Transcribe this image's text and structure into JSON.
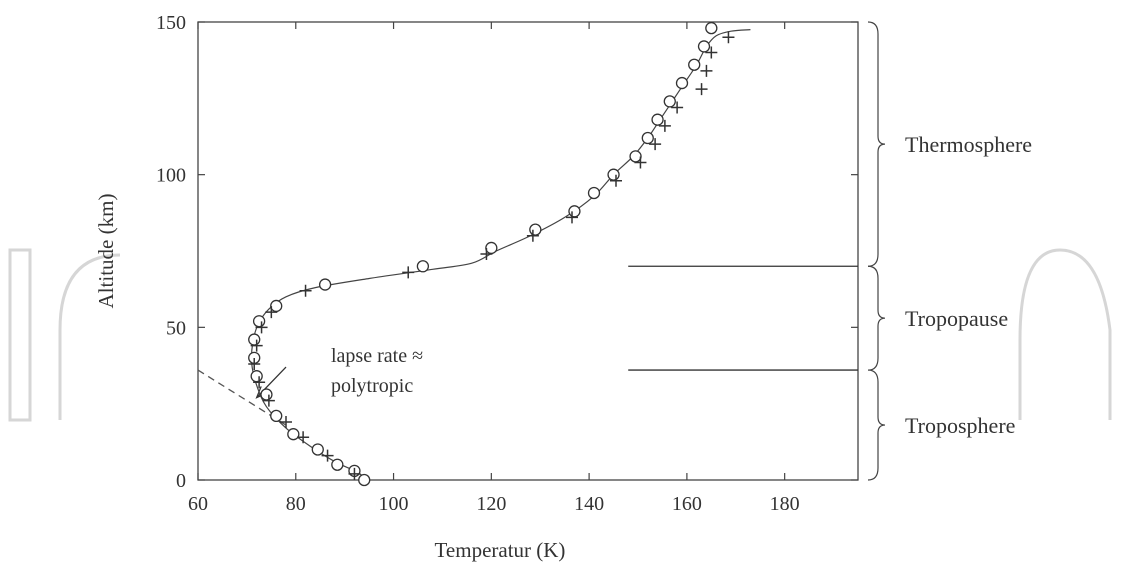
{
  "chart_data": {
    "type": "scatter",
    "title": "",
    "xlabel": "Temperatur (K)",
    "ylabel": "Altitude (km)",
    "xlim": [
      60,
      195
    ],
    "ylim": [
      0,
      150
    ],
    "x_ticks": [
      60,
      80,
      100,
      120,
      140,
      160,
      180
    ],
    "y_ticks": [
      0,
      50,
      100,
      150
    ],
    "grid": false,
    "legend": "none",
    "series": [
      {
        "marker": "circle",
        "points": [
          [
            94,
            0
          ],
          [
            92,
            3
          ],
          [
            88.5,
            5
          ],
          [
            84.5,
            10
          ],
          [
            79.5,
            15
          ],
          [
            76,
            21
          ],
          [
            74,
            28
          ],
          [
            72,
            34
          ],
          [
            71.5,
            40
          ],
          [
            71.5,
            46
          ],
          [
            72.5,
            52
          ],
          [
            76,
            57
          ],
          [
            86,
            64
          ],
          [
            106,
            70
          ],
          [
            120,
            76
          ],
          [
            129,
            82
          ],
          [
            137,
            88
          ],
          [
            141,
            94
          ],
          [
            145,
            100
          ],
          [
            149.5,
            106
          ],
          [
            152,
            112
          ],
          [
            154,
            118
          ],
          [
            156.5,
            124
          ],
          [
            159,
            130
          ],
          [
            161.5,
            136
          ],
          [
            163.5,
            142
          ],
          [
            165,
            148
          ]
        ]
      },
      {
        "marker": "plus",
        "points": [
          [
            92,
            2
          ],
          [
            86.5,
            8
          ],
          [
            81.5,
            14
          ],
          [
            78,
            19
          ],
          [
            74.5,
            26
          ],
          [
            72.5,
            32
          ],
          [
            71.5,
            38
          ],
          [
            72,
            44
          ],
          [
            73,
            50
          ],
          [
            75,
            55
          ],
          [
            82,
            62
          ],
          [
            103,
            68
          ],
          [
            119,
            74
          ],
          [
            128.5,
            80
          ],
          [
            136.5,
            86
          ],
          [
            145.5,
            98
          ],
          [
            150.5,
            104
          ],
          [
            153.5,
            110
          ],
          [
            155.5,
            116
          ],
          [
            158,
            122
          ],
          [
            163,
            128
          ],
          [
            164,
            134
          ],
          [
            165,
            140
          ],
          [
            168.5,
            145
          ]
        ]
      }
    ],
    "fit_curve": [
      [
        95,
        0
      ],
      [
        92,
        3
      ],
      [
        88,
        6
      ],
      [
        83,
        11
      ],
      [
        78,
        17
      ],
      [
        74,
        24
      ],
      [
        72,
        31
      ],
      [
        71,
        38
      ],
      [
        71.2,
        45
      ],
      [
        72.3,
        51
      ],
      [
        74.5,
        56
      ],
      [
        78,
        60
      ],
      [
        84,
        63
      ],
      [
        95,
        66
      ],
      [
        108,
        69
      ],
      [
        116,
        71
      ],
      [
        121,
        75
      ],
      [
        128,
        80
      ],
      [
        135,
        86
      ],
      [
        141,
        93
      ],
      [
        145,
        100
      ],
      [
        149,
        106
      ],
      [
        152,
        112
      ],
      [
        154.5,
        118
      ],
      [
        157,
        124
      ],
      [
        159.5,
        130
      ],
      [
        162,
        136
      ],
      [
        164,
        142
      ],
      [
        166,
        145.5
      ],
      [
        169,
        147
      ],
      [
        173,
        147.5
      ]
    ],
    "polytropic_line": [
      [
        60,
        36
      ],
      [
        78,
        18
      ]
    ],
    "boundaries": [
      {
        "y": 70,
        "x_start": 148
      },
      {
        "y": 36,
        "x_start": 148
      }
    ],
    "regions": [
      {
        "label": "Thermosphere",
        "from": 70,
        "to": 150
      },
      {
        "label": "Tropopause",
        "from": 36,
        "to": 70
      },
      {
        "label": "Troposphere",
        "from": 0,
        "to": 36
      }
    ],
    "annotation": {
      "line1": "lapse rate ≈",
      "line2": "polytropic",
      "arrow_from": [
        78,
        37
      ],
      "arrow_to": [
        72,
        27
      ]
    }
  }
}
